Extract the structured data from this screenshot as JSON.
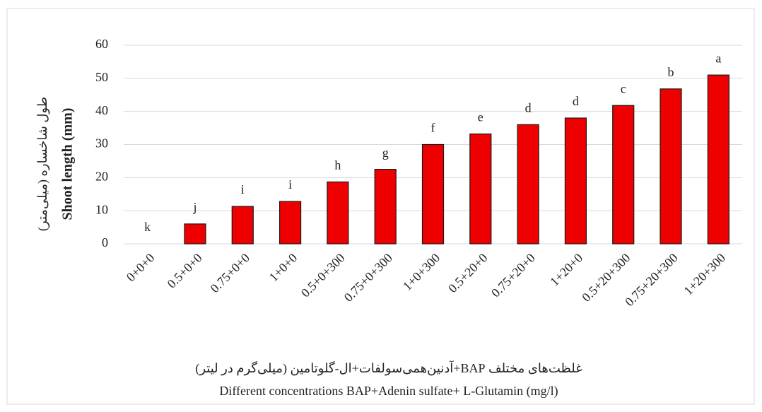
{
  "chart_data": {
    "type": "bar",
    "y_label": "Shoot length (mm)",
    "y_label_fa": "طول شاخساره (میلی‌متر)",
    "x_label_fa": "غلظت‌های مختلف BAP+آدنین‌همی‌سولفات+ال-گلوتامین (میلی‌گرم در لیتر)",
    "x_label": "Different concentrations BAP+Adenin sulfate+ L-Glutamin (mg/l)",
    "categories": [
      "0+0+0",
      "0.5+0+0",
      "0.75+0+0",
      "1+0+0",
      "0.5+0+300",
      "0.75+0+300",
      "1+0+300",
      "0.5+20+0",
      "0.75+20+0",
      "1+20+0",
      "0.5+20+300",
      "0.75+20+300",
      "1+20+300"
    ],
    "values": [
      0,
      6,
      11.3,
      12.8,
      18.7,
      22.5,
      30,
      33.2,
      36,
      38,
      41.8,
      46.8,
      51
    ],
    "annotations": [
      "k",
      "j",
      "i",
      "i",
      "h",
      "g",
      "f",
      "e",
      "d",
      "d",
      "c",
      "b",
      "a"
    ],
    "color": "#ee0000",
    "ylim": [
      0,
      60
    ],
    "yticks": [
      0,
      10,
      20,
      30,
      40,
      50,
      60
    ],
    "grid": true
  }
}
